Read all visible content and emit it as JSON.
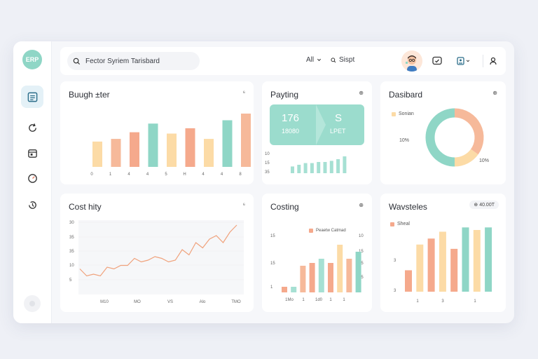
{
  "colors": {
    "teal": "#8fd6c6",
    "peach": "#f6b99a",
    "yellow": "#fcdba6",
    "salmon": "#f5a98c",
    "mint": "#a6e0d3"
  },
  "sidebar": {
    "logo_text": "ERP",
    "items": [
      {
        "icon": "document-icon"
      },
      {
        "icon": "refresh-icon"
      },
      {
        "icon": "calendar-icon"
      },
      {
        "icon": "gauge-icon"
      },
      {
        "icon": "clock-icon"
      }
    ]
  },
  "topbar": {
    "search_value": "Fector Syriem Tarisbard",
    "filter_label": "All",
    "search_label": "Sispt"
  },
  "cards": {
    "budget": {
      "title": "Buugh ±ter",
      "menu": "⁶",
      "x_labels": [
        "0",
        "1",
        "4",
        "4",
        "5",
        "H",
        "4",
        "4",
        "8"
      ]
    },
    "paying": {
      "title": "Payting",
      "menu": "⊕",
      "stat_main": "176",
      "stat_sub": "18080",
      "stat2_main": "S",
      "stat2_sub": "LPET",
      "y_labels": [
        "10",
        "15",
        "35"
      ]
    },
    "dashboard": {
      "title": "Dasibard",
      "menu": "⊕",
      "legend": "Sonian",
      "left_label": "10%",
      "right_label": "10%"
    },
    "cost": {
      "title": "Cost hity",
      "menu": "⁶",
      "y_labels": [
        "30",
        "35",
        "35",
        "10",
        "5"
      ],
      "x_labels": [
        "M10",
        "MO",
        "VS",
        "Alo",
        "TMO"
      ]
    },
    "costing": {
      "title": "Costing",
      "menu": "⊕",
      "legend": "Peaetw Catmad",
      "y_left": [
        "15",
        "15",
        "1"
      ],
      "y_right": [
        "10",
        "15",
        "35",
        "35"
      ],
      "x_labels": [
        "1Mo",
        "1",
        "1d0",
        "1",
        "1"
      ]
    },
    "wavsteles": {
      "title": "Wavsteles",
      "menu": "⊕ 40.00T",
      "legend": "Sheal",
      "y_labels": [
        "3",
        "3"
      ],
      "x_labels": [
        "1",
        "3",
        "1"
      ]
    }
  },
  "chart_data": [
    {
      "type": "bar",
      "categories": [
        "0",
        "1",
        "4",
        "4",
        "5",
        "H",
        "4",
        "4",
        "8"
      ],
      "values": [
        38,
        42,
        52,
        65,
        50,
        58,
        42,
        70,
        80
      ],
      "ylim": [
        0,
        100
      ]
    },
    {
      "type": "bar",
      "values": [
        12,
        15,
        18,
        18,
        20,
        20,
        22,
        25,
        30
      ],
      "ylim": [
        0,
        35
      ]
    },
    {
      "type": "pie",
      "values": [
        35,
        15,
        50
      ],
      "colors": [
        "#f6b99a",
        "#fcdba6",
        "#8fd6c6"
      ]
    },
    {
      "type": "line",
      "values": [
        13,
        9,
        10,
        9,
        14,
        13,
        15,
        15,
        19,
        17,
        18,
        20,
        19,
        17,
        18,
        24,
        21,
        28,
        25,
        30,
        32,
        28,
        34,
        38
      ],
      "ylim": [
        0,
        40
      ]
    },
    {
      "type": "bar",
      "series": [
        {
          "values": [
            7,
            12,
            30,
            45,
            55,
            45,
            78,
            60
          ]
        },
        {
          "values": [
            5,
            10,
            35,
            45,
            58,
            40,
            70,
            60
          ]
        }
      ],
      "values": [
        8,
        8,
        38,
        42,
        48,
        42,
        68,
        48,
        58
      ],
      "ylim": [
        0,
        80
      ]
    },
    {
      "type": "bar",
      "values": [
        25,
        55,
        62,
        70,
        50,
        75,
        72,
        75
      ],
      "ylim": [
        0,
        90
      ]
    }
  ]
}
